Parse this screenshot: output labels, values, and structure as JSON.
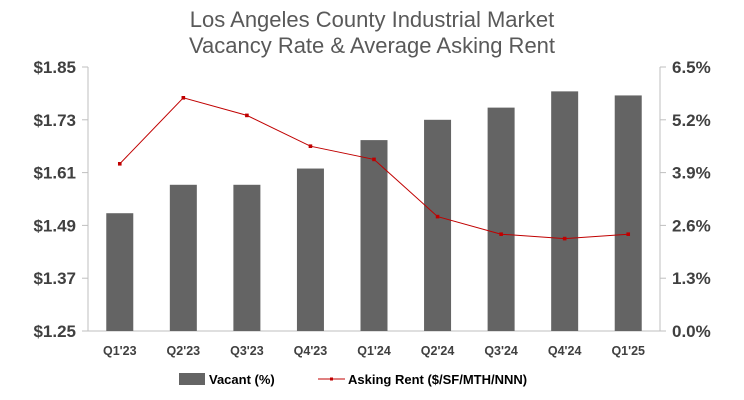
{
  "chart_data": {
    "type": "bar",
    "title": [
      "Los Angeles County Industrial Market",
      "Vacancy Rate & Average Asking Rent"
    ],
    "categories": [
      "Q1'23",
      "Q2'23",
      "Q3'23",
      "Q4'23",
      "Q1'24",
      "Q2'24",
      "Q3'24",
      "Q4'24",
      "Q1'25"
    ],
    "series": [
      {
        "name": "Vacant (%)",
        "type": "bar",
        "axis": "right",
        "color": "#646464",
        "values": [
          2.9,
          3.6,
          3.6,
          4.0,
          4.7,
          5.2,
          5.5,
          5.9,
          5.8
        ]
      },
      {
        "name": "Asking Rent ($/SF/MTH/NNN)",
        "type": "line",
        "axis": "left",
        "color": "#c00000",
        "values": [
          1.63,
          1.78,
          1.74,
          1.67,
          1.64,
          1.51,
          1.47,
          1.46,
          1.47
        ]
      }
    ],
    "y_left": {
      "range": [
        1.25,
        1.85
      ],
      "ticks": [
        1.25,
        1.37,
        1.49,
        1.61,
        1.73,
        1.85
      ],
      "tick_labels": [
        "$1.25",
        "$1.37",
        "$1.49",
        "$1.61",
        "$1.73",
        "$1.85"
      ]
    },
    "y_right": {
      "range": [
        0,
        6.5
      ],
      "ticks": [
        0,
        1.3,
        2.6,
        3.9,
        5.2,
        6.5
      ],
      "tick_labels": [
        "0.0%",
        "1.3%",
        "2.6%",
        "3.9%",
        "5.2%",
        "6.5%"
      ]
    },
    "grid": false,
    "legend": "bottom"
  }
}
